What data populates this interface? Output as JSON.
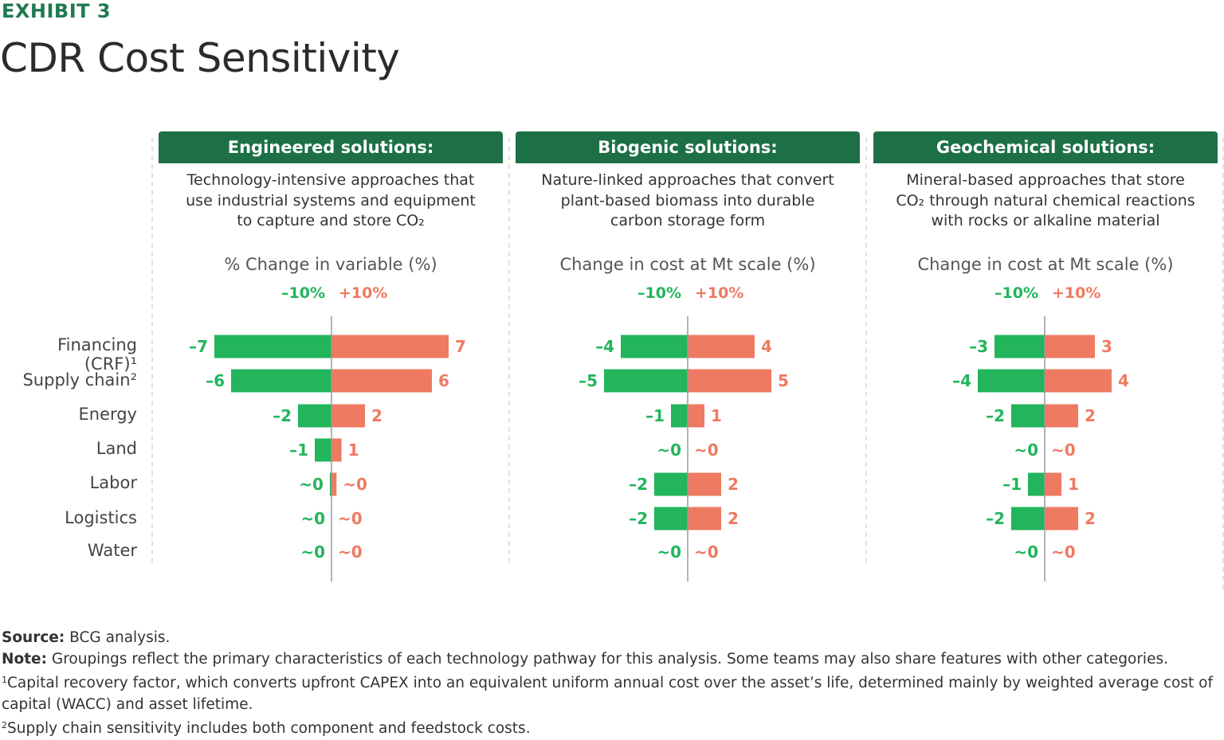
{
  "exhibit": "EXHIBIT 3",
  "title": "CDR Cost Sensitivity",
  "colors": {
    "header": "#1d7046",
    "negative": "#22b55c",
    "positive": "#ee7a62",
    "exhibit": "#1e7a4f"
  },
  "panels": [
    {
      "header": "Engineered solutions:",
      "desc": [
        "Technology-intensive approaches that",
        "use industrial systems and equipment",
        "to capture and store CO₂"
      ],
      "axis": "% Change in variable (%)",
      "neg_label": "–10%",
      "pos_label": "+10%"
    },
    {
      "header": "Biogenic solutions:",
      "desc": [
        "Nature-linked approaches that convert",
        "plant-based biomass into durable",
        "carbon storage form"
      ],
      "axis": "Change in cost at Mt scale (%)",
      "neg_label": "–10%",
      "pos_label": "+10%"
    },
    {
      "header": "Geochemical solutions:",
      "desc": [
        "Mineral-based approaches that store",
        "CO₂ through natural chemical reactions",
        "with rocks or alkaline material"
      ],
      "axis": "Change in cost at Mt scale (%)",
      "neg_label": "–10%",
      "pos_label": "+10%"
    }
  ],
  "rows": [
    "Financing (CRF)¹",
    "Supply chain²",
    "Energy",
    "Land",
    "Labor",
    "Logistics",
    "Water"
  ],
  "chart_data": [
    {
      "type": "bar",
      "title": "Engineered solutions:",
      "categories": [
        "Financing (CRF)¹",
        "Supply chain²",
        "Energy",
        "Land",
        "Labor",
        "Logistics",
        "Water"
      ],
      "series": [
        {
          "name": "–10%",
          "values": [
            -7,
            -6,
            -2,
            -1,
            -0.1,
            0,
            0
          ],
          "labels": [
            "–7",
            "–6",
            "–2",
            "–1",
            "~0",
            "~0",
            "~0"
          ]
        },
        {
          "name": "+10%",
          "values": [
            7,
            6,
            2,
            0.6,
            0.3,
            0,
            0
          ],
          "labels": [
            "7",
            "6",
            "2",
            "1",
            "~0",
            "~0",
            "~0"
          ]
        }
      ]
    },
    {
      "type": "bar",
      "title": "Biogenic solutions:",
      "categories": [
        "Financing (CRF)¹",
        "Supply chain²",
        "Energy",
        "Land",
        "Labor",
        "Logistics",
        "Water"
      ],
      "series": [
        {
          "name": "–10%",
          "values": [
            -4,
            -5,
            -1,
            0,
            -2,
            -2,
            0
          ],
          "labels": [
            "–4",
            "–5",
            "–1",
            "~0",
            "–2",
            "–2",
            "~0"
          ]
        },
        {
          "name": "+10%",
          "values": [
            4,
            5,
            1,
            0,
            2,
            2,
            0
          ],
          "labels": [
            "4",
            "5",
            "1",
            "~0",
            "2",
            "2",
            "~0"
          ]
        }
      ]
    },
    {
      "type": "bar",
      "title": "Geochemical solutions:",
      "categories": [
        "Financing (CRF)¹",
        "Supply chain²",
        "Energy",
        "Land",
        "Labor",
        "Logistics",
        "Water"
      ],
      "series": [
        {
          "name": "–10%",
          "values": [
            -3,
            -4,
            -2,
            0,
            -1,
            -2,
            0
          ],
          "labels": [
            "–3",
            "–4",
            "–2",
            "~0",
            "–1",
            "–2",
            "~0"
          ]
        },
        {
          "name": "+10%",
          "values": [
            3,
            4,
            2,
            0,
            1,
            2,
            0
          ],
          "labels": [
            "3",
            "4",
            "2",
            "~0",
            "1",
            "2",
            "~0"
          ]
        }
      ]
    }
  ],
  "notes": {
    "source_label": "Source:",
    "source_text": " BCG analysis.",
    "note_label": "Note:",
    "note_text": " Groupings reflect the primary characteristics of each technology pathway for this analysis. Some teams may also share features with other categories.",
    "footnote1_mark": "1",
    "footnote1": "Capital recovery factor, which converts upfront CAPEX into an equivalent uniform annual cost over the asset’s life, determined mainly by weighted average cost of capital (WACC) and asset lifetime.",
    "footnote2_mark": "2",
    "footnote2": "Supply chain sensitivity includes both component and feedstock costs."
  }
}
